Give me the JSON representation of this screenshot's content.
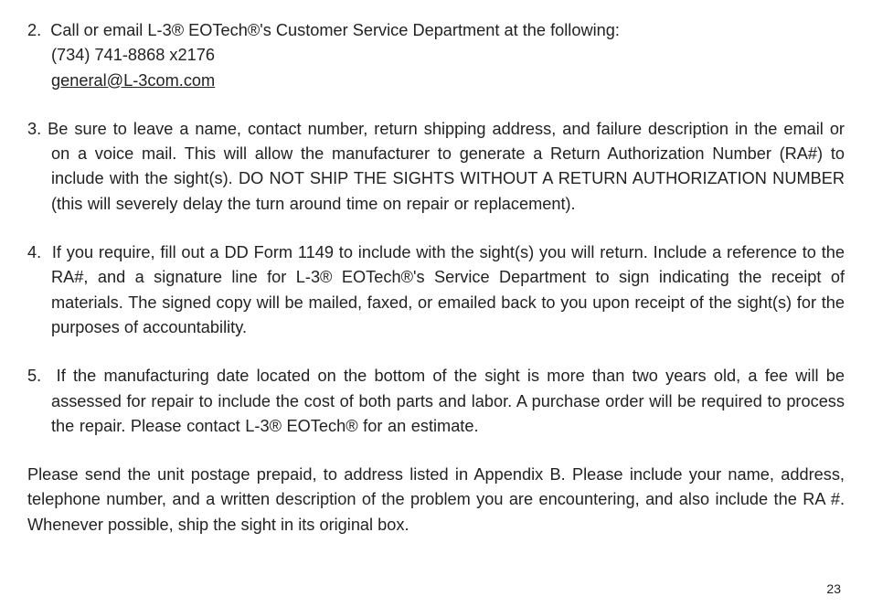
{
  "item2": {
    "num": "2.",
    "line1": "Call or email L-3® EOTech®'s Customer Service Department at the following:",
    "phone": "(734) 741-8868 x2176",
    "email": "general@L-3com.com"
  },
  "item3": {
    "num": "3.",
    "text": "Be sure to leave a name, contact number, return shipping address, and failure description in the email or on a voice mail. This will allow the manufacturer to generate a Return Authorization Number (RA#) to include with the sight(s). DO NOT SHIP THE SIGHTS WITHOUT A RETURN AUTHORIZATION NUMBER (this will severely delay the turn around time on repair or replacement)."
  },
  "item4": {
    "num": "4.",
    "text": "If you require, fill out a DD Form 1149 to include with the sight(s) you will return. Include a reference to the RA#, and a signature line for L-3® EOTech®'s Service Department to sign indicating the receipt of materials. The signed copy will be mailed, faxed, or emailed back to you upon receipt of the sight(s) for the purposes of accountability."
  },
  "item5": {
    "num": "5.",
    "text": "If the manufacturing date located on the bottom of the sight is more than two years old, a fee will be assessed for repair to include the cost of both parts and labor. A purchase order will be required to process the repair. Please contact L-3® EOTech® for an estimate."
  },
  "closing": {
    "text": "Please send the unit postage prepaid, to address listed in Appendix B. Please include your name, address, telephone number, and a written description of the problem you are encountering, and also include the RA #. Whenever possible, ship the sight in its original box."
  },
  "page_number": "23"
}
